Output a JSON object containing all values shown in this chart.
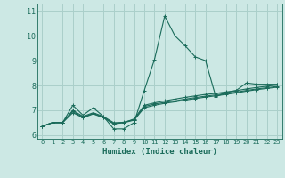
{
  "xlabel": "Humidex (Indice chaleur)",
  "bg_color": "#cce8e4",
  "grid_color": "#aacfca",
  "line_color": "#1a6b5a",
  "xlim": [
    -0.5,
    23.5
  ],
  "ylim": [
    5.85,
    11.3
  ],
  "xticks": [
    0,
    1,
    2,
    3,
    4,
    5,
    6,
    7,
    8,
    9,
    10,
    11,
    12,
    13,
    14,
    15,
    16,
    17,
    18,
    19,
    20,
    21,
    22,
    23
  ],
  "yticks": [
    6,
    7,
    8,
    9,
    10,
    11
  ],
  "series": [
    [
      6.35,
      6.5,
      6.5,
      7.2,
      6.8,
      7.1,
      6.75,
      6.25,
      6.25,
      6.5,
      7.8,
      9.05,
      10.8,
      10.0,
      9.6,
      9.15,
      9.0,
      7.55,
      7.7,
      7.8,
      8.1,
      8.05,
      8.05,
      8.05
    ],
    [
      6.35,
      6.5,
      6.5,
      7.0,
      6.75,
      6.9,
      6.75,
      6.5,
      6.5,
      6.65,
      7.2,
      7.3,
      7.38,
      7.45,
      7.52,
      7.58,
      7.64,
      7.68,
      7.74,
      7.79,
      7.86,
      7.92,
      7.97,
      8.02
    ],
    [
      6.35,
      6.5,
      6.5,
      6.95,
      6.72,
      6.87,
      6.72,
      6.47,
      6.52,
      6.62,
      7.15,
      7.25,
      7.32,
      7.38,
      7.45,
      7.51,
      7.57,
      7.62,
      7.68,
      7.73,
      7.8,
      7.86,
      7.91,
      7.96
    ],
    [
      6.35,
      6.5,
      6.5,
      6.9,
      6.7,
      6.85,
      6.7,
      6.45,
      6.5,
      6.6,
      7.1,
      7.2,
      7.28,
      7.34,
      7.41,
      7.47,
      7.53,
      7.58,
      7.64,
      7.7,
      7.77,
      7.83,
      7.88,
      7.93
    ]
  ]
}
